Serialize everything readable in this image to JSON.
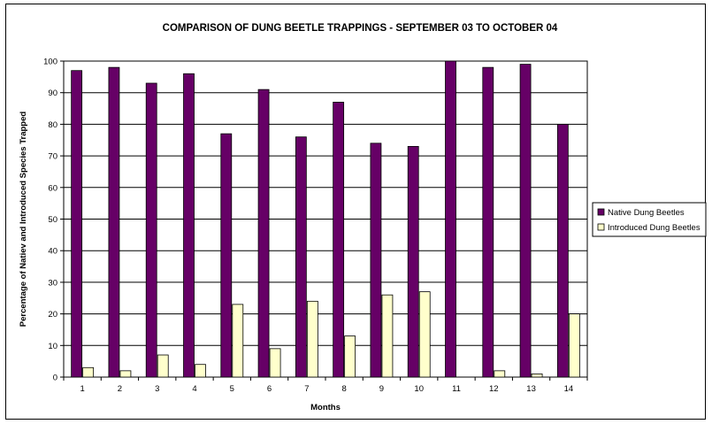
{
  "chart_data": {
    "type": "bar",
    "title": "COMPARISON OF DUNG BEETLE TRAPPINGS - SEPTEMBER 03 TO OCTOBER 04",
    "xlabel": "Months",
    "ylabel": "Percentage of Natiev and Introduced Species Trapped",
    "categories": [
      "1",
      "2",
      "3",
      "4",
      "5",
      "6",
      "7",
      "8",
      "9",
      "10",
      "11",
      "12",
      "13",
      "14"
    ],
    "ylim": [
      0,
      100
    ],
    "yticks": [
      0,
      10,
      20,
      30,
      40,
      50,
      60,
      70,
      80,
      90,
      100
    ],
    "grid": true,
    "legend_position": "right",
    "series": [
      {
        "name": "Native Dung Beetles",
        "color": "#660066",
        "values": [
          97,
          98,
          93,
          96,
          77,
          91,
          76,
          87,
          74,
          73,
          100,
          98,
          99,
          80
        ]
      },
      {
        "name": "Introduced Dung Beetles",
        "color": "#ffffcc",
        "values": [
          3,
          2,
          7,
          4,
          23,
          9,
          24,
          13,
          26,
          27,
          0,
          2,
          1,
          20
        ]
      }
    ]
  }
}
